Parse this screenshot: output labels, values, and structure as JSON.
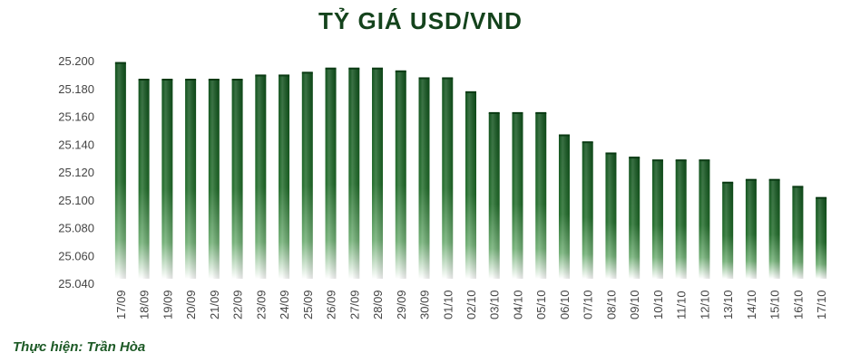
{
  "title": "TỶ GIÁ USD/VND",
  "credit": "Thực hiện: Trần Hòa",
  "colors": {
    "title": "#14431c",
    "bar_dark": "#0e4f1a",
    "bar_mid": "#2e7d36",
    "credit": "#1d5a26"
  },
  "chart_data": {
    "type": "bar",
    "title": "TỶ GIÁ USD/VND",
    "xlabel": "",
    "ylabel": "",
    "ylim": [
      25040,
      25200
    ],
    "yticks": [
      25040,
      25060,
      25080,
      25100,
      25120,
      25140,
      25160,
      25180,
      25200
    ],
    "ytick_labels": [
      "25.040",
      "25.060",
      "25.080",
      "25.100",
      "25.120",
      "25.140",
      "25.160",
      "25.180",
      "25.200"
    ],
    "grid": false,
    "legend": "none",
    "categories": [
      "17/09",
      "18/09",
      "19/09",
      "20/09",
      "21/09",
      "22/09",
      "23/09",
      "24/09",
      "25/09",
      "26/09",
      "27/09",
      "28/09",
      "29/09",
      "30/09",
      "01/10",
      "02/10",
      "03/10",
      "04/10",
      "05/10",
      "06/10",
      "07/10",
      "08/10",
      "09/10",
      "10/10",
      "11/10",
      "12/10",
      "13/10",
      "14/10",
      "15/10",
      "16/10",
      "17/10"
    ],
    "values": [
      25199,
      25187,
      25187,
      25187,
      25187,
      25187,
      25190,
      25190,
      25192,
      25195,
      25195,
      25195,
      25193,
      25188,
      25188,
      25178,
      25163,
      25163,
      25163,
      25147,
      25142,
      25134,
      25131,
      25129,
      25129,
      25129,
      25113,
      25115,
      25115,
      25110,
      25102
    ]
  }
}
